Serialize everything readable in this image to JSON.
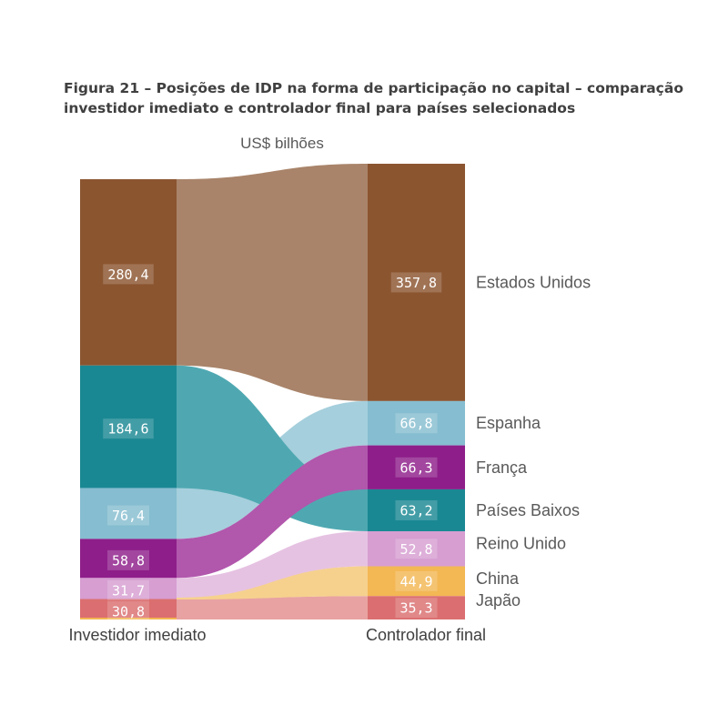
{
  "figure": {
    "title_line1": "Figura 21 – Posições de IDP na forma de participação no capital – comparação",
    "title_line2": "investidor imediato e controlador final para países selecionados"
  },
  "chart_data": {
    "type": "sankey",
    "unit": "US$ bilhões",
    "left_axis_label": "Investidor imediato",
    "right_axis_label": "Controlador final",
    "countries": [
      {
        "name": "Estados Unidos",
        "investidor_imediato": 280.4,
        "controlador_final": 357.8,
        "color": "#8B5530",
        "link_color": "#A9846A"
      },
      {
        "name": "Espanha",
        "investidor_imediato": 76.4,
        "controlador_final": 66.8,
        "color": "#86BDD0",
        "link_color": "#A5CFDC"
      },
      {
        "name": "França",
        "investidor_imediato": 58.8,
        "controlador_final": 66.3,
        "color": "#8E1E8A",
        "link_color": "#B157AC"
      },
      {
        "name": "Países Baixos",
        "investidor_imediato": 184.6,
        "controlador_final": 63.2,
        "color": "#1A8893",
        "link_color": "#4FA8B1"
      },
      {
        "name": "Reino Unido",
        "investidor_imediato": 31.7,
        "controlador_final": 52.8,
        "color": "#D69ED1",
        "link_color": "#E6C2E2"
      },
      {
        "name": "China",
        "investidor_imediato": null,
        "controlador_final": 44.9,
        "color": "#F3B754",
        "link_color": "#F6D18E"
      },
      {
        "name": "Japão",
        "investidor_imediato": 30.8,
        "controlador_final": 35.3,
        "color": "#DB6E70",
        "link_color": "#E8A2A2"
      }
    ],
    "left_order": [
      "Estados Unidos",
      "Países Baixos",
      "Espanha",
      "França",
      "Reino Unido",
      "Japão"
    ],
    "right_order": [
      "Estados Unidos",
      "Espanha",
      "França",
      "Países Baixos",
      "Reino Unido",
      "China",
      "Japão"
    ],
    "left_labels": [
      "280,4",
      "184,6",
      "76,4",
      "58,8",
      "31,7",
      "30,8"
    ],
    "right_labels": [
      "357,8",
      "66,8",
      "66,3",
      "63,2",
      "52,8",
      "44,9",
      "35,3"
    ]
  }
}
